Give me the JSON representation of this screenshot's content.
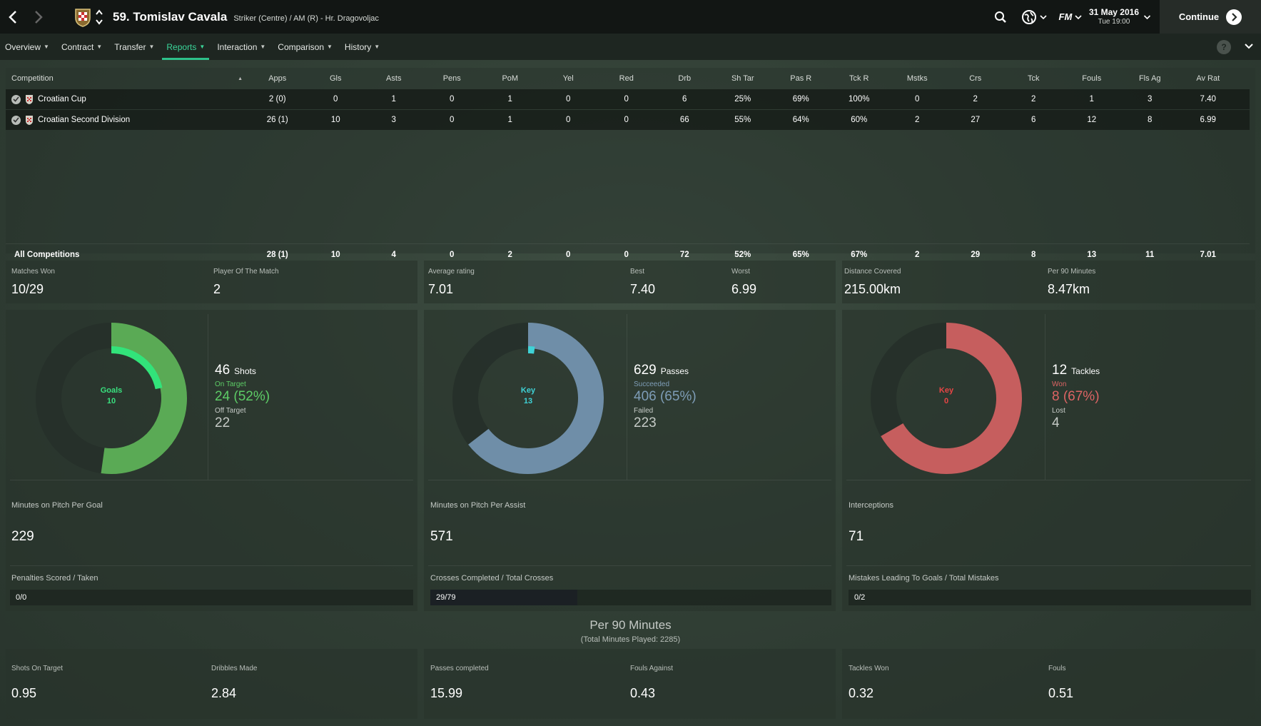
{
  "header": {
    "player_name": "59. Tomislav Cavala",
    "player_sub": "Striker (Centre) / AM (R) - Hr. Dragovoljac",
    "date": "31 May 2016",
    "time": "Tue 19:00",
    "continue_label": "Continue",
    "fm_label": "FM"
  },
  "tabs": [
    {
      "label": "Overview"
    },
    {
      "label": "Contract"
    },
    {
      "label": "Transfer"
    },
    {
      "label": "Reports",
      "active": true
    },
    {
      "label": "Interaction"
    },
    {
      "label": "Comparison"
    },
    {
      "label": "History"
    }
  ],
  "help_label": "?",
  "table": {
    "headers": [
      "Competition",
      "Apps",
      "Gls",
      "Asts",
      "Pens",
      "PoM",
      "Yel",
      "Red",
      "Drb",
      "Sh Tar",
      "Pas R",
      "Tck R",
      "Mstks",
      "Crs",
      "Tck",
      "Fouls",
      "Fls Ag",
      "Av Rat"
    ],
    "rows": [
      {
        "competition": "Croatian Cup",
        "values": [
          "2 (0)",
          "0",
          "1",
          "0",
          "1",
          "0",
          "0",
          "6",
          "25%",
          "69%",
          "100%",
          "0",
          "2",
          "2",
          "1",
          "3",
          "7.40"
        ]
      },
      {
        "competition": "Croatian Second Division",
        "values": [
          "26 (1)",
          "10",
          "3",
          "0",
          "1",
          "0",
          "0",
          "66",
          "55%",
          "64%",
          "60%",
          "2",
          "27",
          "6",
          "12",
          "8",
          "6.99"
        ]
      }
    ],
    "total": {
      "competition": "All Competitions",
      "values": [
        "28 (1)",
        "10",
        "4",
        "0",
        "2",
        "0",
        "0",
        "72",
        "52%",
        "65%",
        "67%",
        "2",
        "29",
        "8",
        "13",
        "11",
        "7.01"
      ]
    }
  },
  "summary": {
    "matches_won_label": "Matches Won",
    "matches_won": "10/29",
    "potm_label": "Player Of The Match",
    "potm": "2",
    "avg_rating_label": "Average rating",
    "avg_rating": "7.01",
    "best_label": "Best",
    "best": "7.40",
    "worst_label": "Worst",
    "worst": "6.99",
    "distance_label": "Distance Covered",
    "distance": "215.00km",
    "per90_label": "Per 90 Minutes",
    "per90": "8.47km"
  },
  "cards": {
    "shots": {
      "center_label": "Goals",
      "center_value": "10",
      "total": "46",
      "total_label": "Shots",
      "a_label": "On Target",
      "a_value": "24 (52%)",
      "b_label": "Off Target",
      "b_value": "22",
      "total_num": 46,
      "a_num": 24,
      "key_num": 10,
      "color": "#5aaa55",
      "accent": "#32e37a",
      "text_color": "#5dcc66",
      "stat_label": "Minutes on Pitch Per Goal",
      "stat_value": "229",
      "bar_label": "Penalties Scored / Taken",
      "bar_value": "0/0",
      "bar_fraction": 0
    },
    "passes": {
      "center_label": "Key",
      "center_value": "13",
      "total": "629",
      "total_label": "Passes",
      "a_label": "Succeeded",
      "a_value": "406 (65%)",
      "b_label": "Failed",
      "b_value": "223",
      "total_num": 629,
      "a_num": 406,
      "key_num": 13,
      "color": "#6f8ea8",
      "accent": "#3fd2d6",
      "text_color": "#7e9db7",
      "stat_label": "Minutes on Pitch Per Assist",
      "stat_value": "571",
      "bar_label": "Crosses Completed / Total Crosses",
      "bar_value": "29/79",
      "bar_fraction": 0.367
    },
    "tackles": {
      "center_label": "Key",
      "center_value": "0",
      "total": "12",
      "total_label": "Tackles",
      "a_label": "Won",
      "a_value": "8 (67%)",
      "b_label": "Lost",
      "b_value": "4",
      "total_num": 12,
      "a_num": 8,
      "key_num": 0,
      "color": "#c65e5e",
      "accent": "#e84545",
      "text_color": "#dd6464",
      "stat_label": "Interceptions",
      "stat_value": "71",
      "bar_label": "Mistakes Leading To Goals / Total Mistakes",
      "bar_value": "0/2",
      "bar_fraction": 0
    }
  },
  "per90": {
    "title": "Per 90 Minutes",
    "subtitle": "(Total Minutes Played: 2285)",
    "items": [
      {
        "label": "Shots On Target",
        "value": "0.95"
      },
      {
        "label": "Dribbles Made",
        "value": "2.84"
      },
      {
        "label": "Passes completed",
        "value": "15.99"
      },
      {
        "label": "Fouls Against",
        "value": "0.43"
      },
      {
        "label": "Tackles Won",
        "value": "0.32"
      },
      {
        "label": "Fouls",
        "value": "0.51"
      }
    ]
  }
}
